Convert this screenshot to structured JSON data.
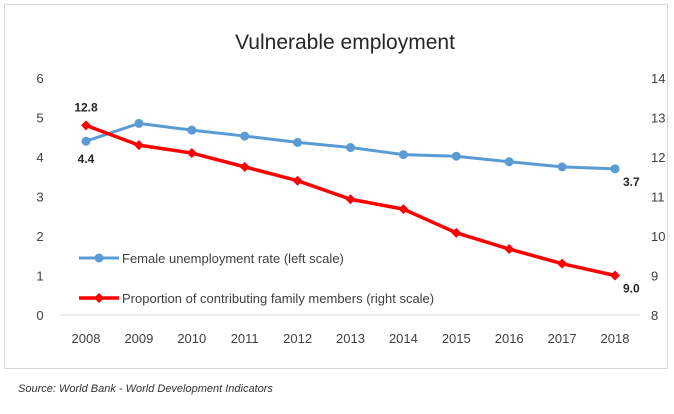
{
  "chart_data": {
    "type": "line",
    "title": "Vulnerable employment",
    "x": [
      "2008",
      "2009",
      "2010",
      "2011",
      "2012",
      "2013",
      "2014",
      "2015",
      "2016",
      "2017",
      "2018"
    ],
    "left_axis": {
      "min": 0,
      "max": 6,
      "ticks": [
        "0",
        "1",
        "2",
        "3",
        "4",
        "5",
        "6"
      ]
    },
    "right_axis": {
      "min": 8,
      "max": 14,
      "ticks": [
        "8",
        "9",
        "10",
        "11",
        "12",
        "13",
        "14"
      ]
    },
    "series": [
      {
        "name": "Female unemployment rate (left scale)",
        "axis": "left",
        "color": "#5b9bd5",
        "values": [
          4.4,
          4.85,
          4.68,
          4.53,
          4.37,
          4.24,
          4.06,
          4.02,
          3.88,
          3.75,
          3.7
        ]
      },
      {
        "name": "Proportion of contributing family members (right scale)",
        "axis": "right",
        "color": "#ff0000",
        "values": [
          12.8,
          12.3,
          12.1,
          11.75,
          11.4,
          10.93,
          10.68,
          10.08,
          9.67,
          9.3,
          9.0
        ]
      }
    ],
    "data_labels": [
      {
        "series": 0,
        "index": 0,
        "text": "4.4",
        "position": "below"
      },
      {
        "series": 1,
        "index": 0,
        "text": "12.8",
        "position": "above"
      },
      {
        "series": 0,
        "index": 10,
        "text": "3.7",
        "position": "right"
      },
      {
        "series": 1,
        "index": 10,
        "text": "9.0",
        "position": "right"
      }
    ],
    "legend_position": "inside-bottom-left",
    "grid": false
  },
  "source_note": "Source: World Bank - World Development Indicators"
}
